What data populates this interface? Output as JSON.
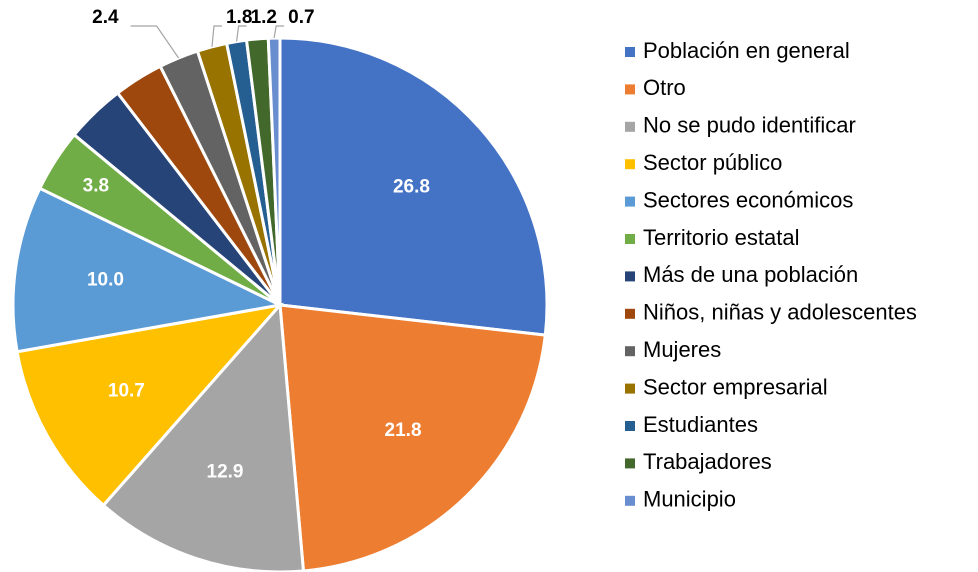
{
  "chart_data": {
    "type": "pie",
    "categories": [
      "Población en general",
      "Otro",
      "No se pudo identificar",
      "Sector público",
      "Sectores económicos",
      "Territorio estatal",
      "Más de una población",
      "Niños, niñas y adolescentes",
      "Mujeres",
      "Sector empresarial",
      "Estudiantes",
      "Trabajadores",
      "Municipio"
    ],
    "values": [
      26.8,
      21.8,
      12.9,
      10.7,
      10.0,
      3.8,
      3.6,
      3.0,
      2.4,
      1.8,
      1.2,
      1.3,
      0.7
    ],
    "value_labels": [
      "26.8",
      "21.8",
      "12.9",
      "10.7",
      "10.0",
      "3.8",
      null,
      null,
      "2.4",
      "1.8",
      "1.2",
      null,
      "0.7"
    ],
    "colors": [
      "#4472c4",
      "#ed7d31",
      "#a5a5a5",
      "#ffc000",
      "#5b9bd5",
      "#70ad47",
      "#264478",
      "#9e480e",
      "#636363",
      "#997300",
      "#255e91",
      "#43682b",
      "#698ed0"
    ],
    "legend": "right"
  }
}
